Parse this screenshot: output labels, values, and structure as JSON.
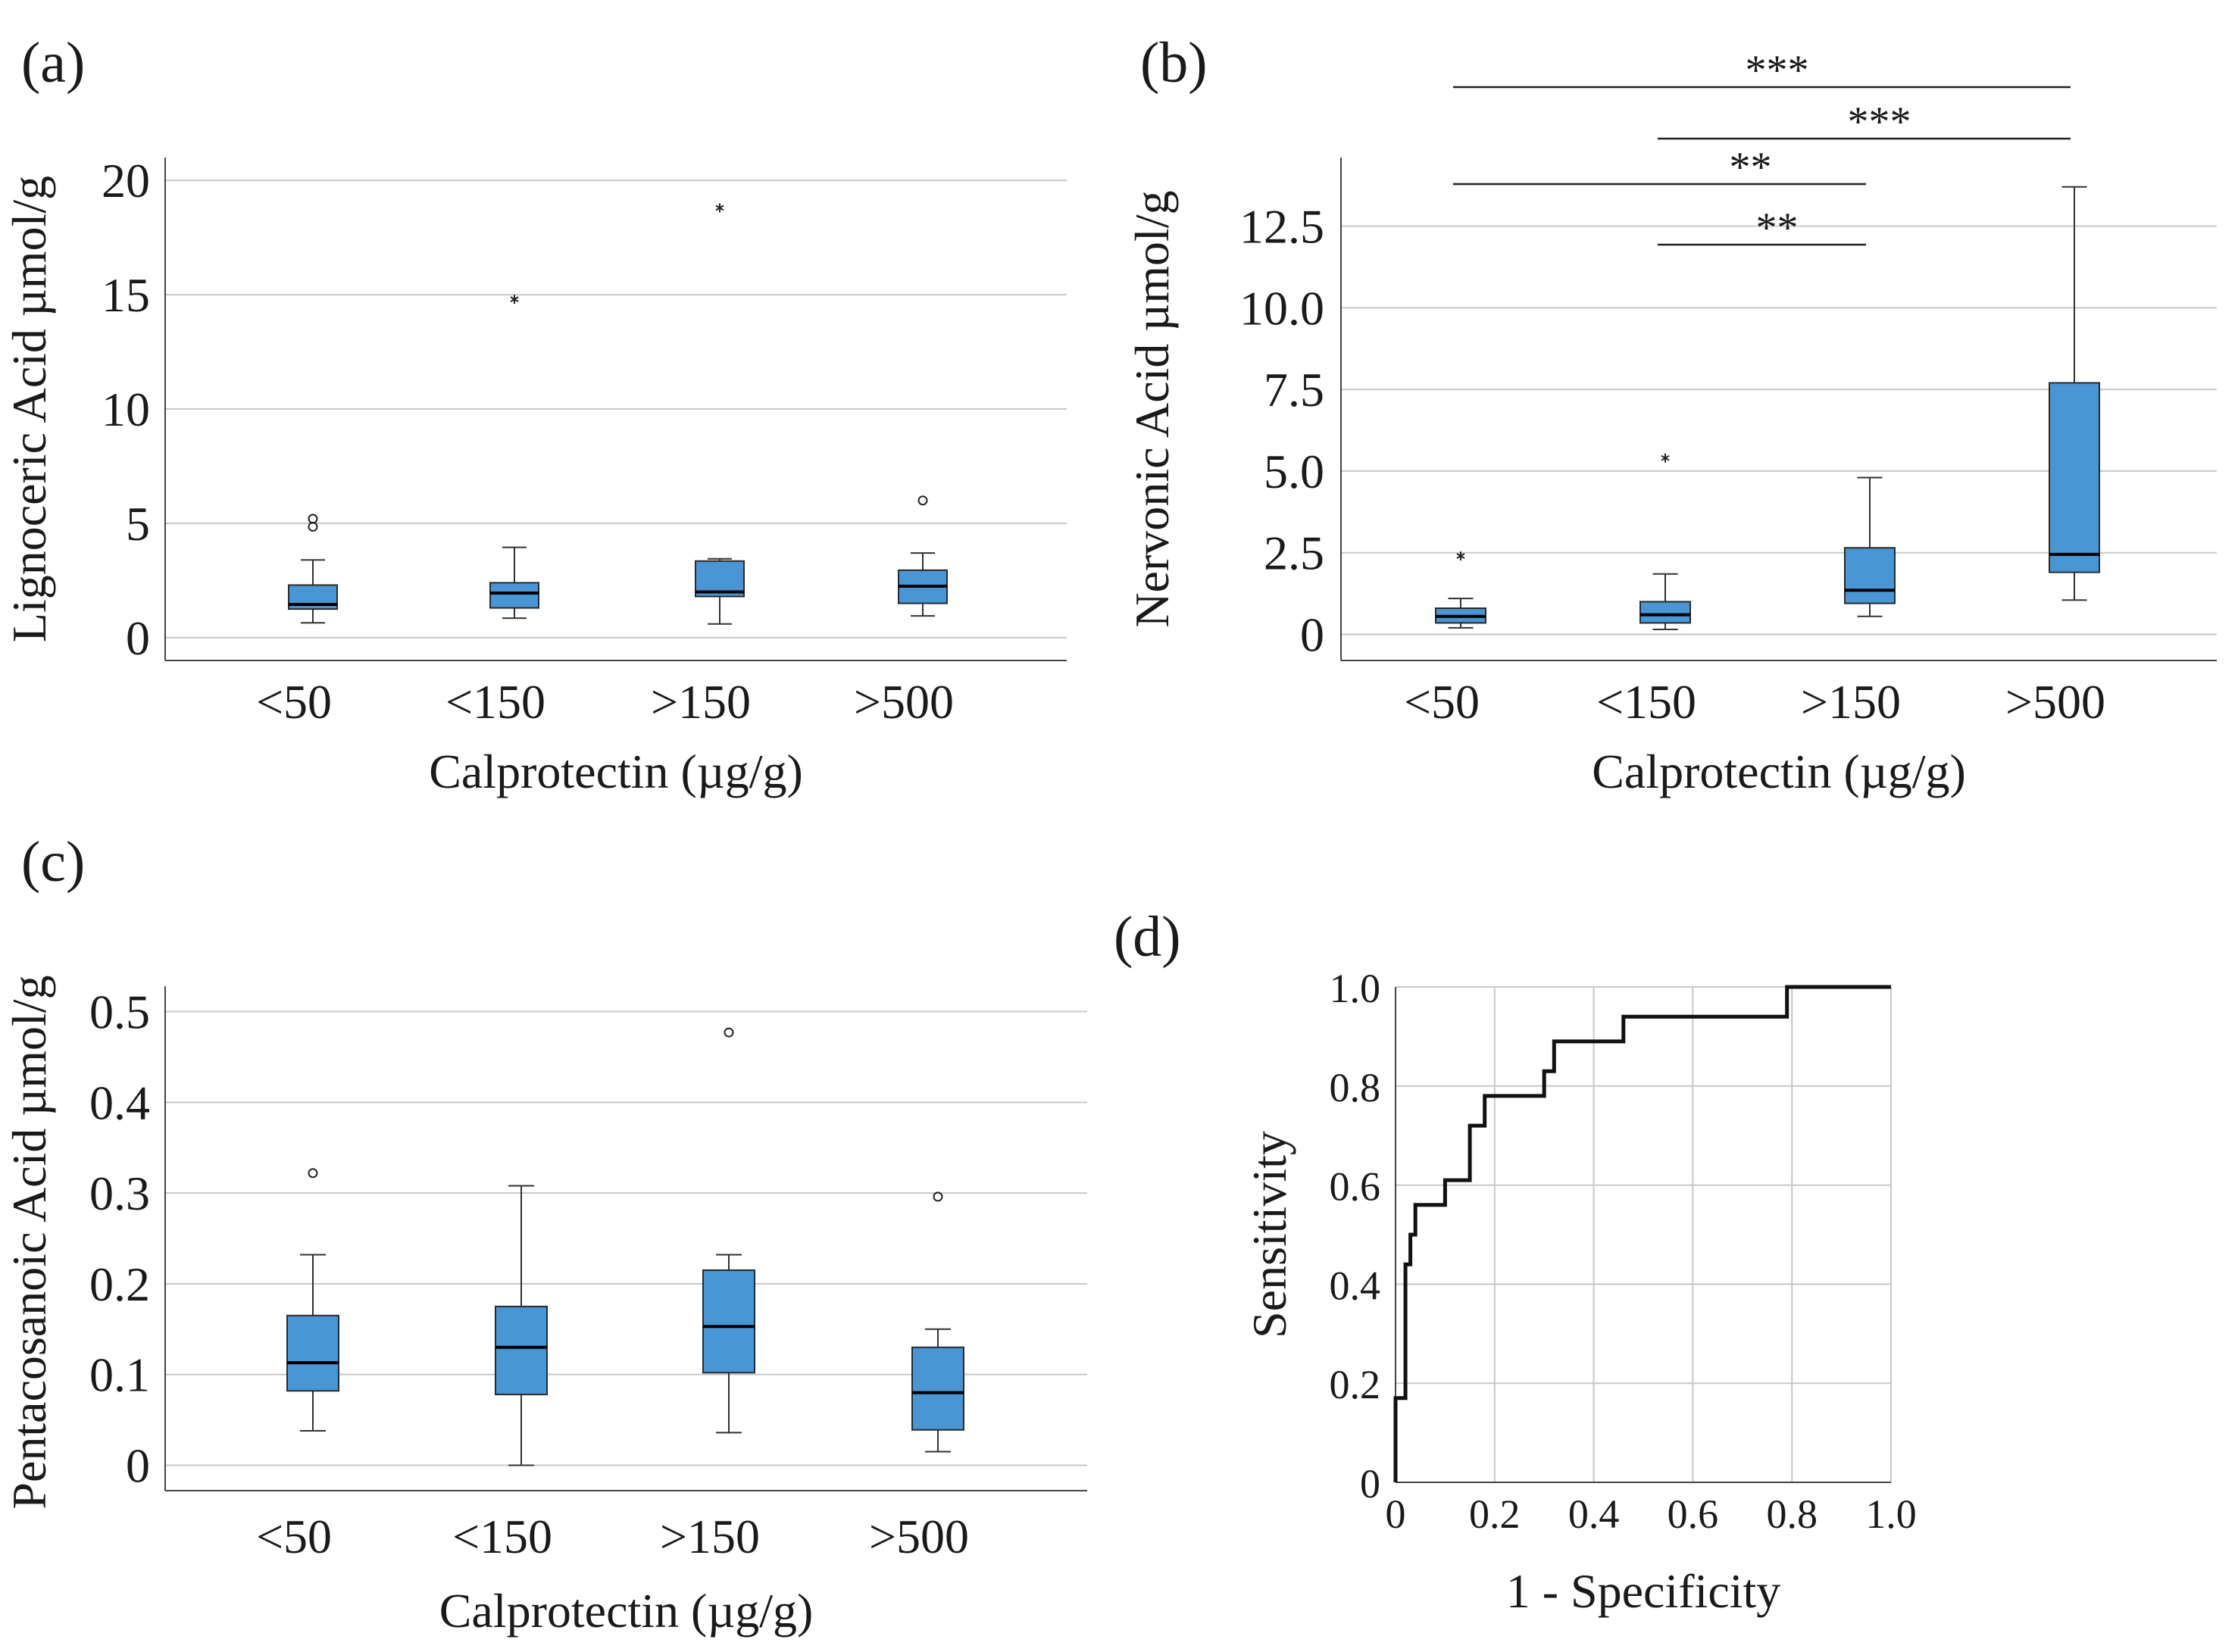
{
  "chart_data": [
    {
      "panel_label": "(a)",
      "type": "box",
      "ylabel": "Lignoceric Acid µmol/g",
      "xlabel": "Calprotectin (µg/g)",
      "ylim": [
        -1,
        21
      ],
      "yticks": [
        0,
        5,
        10,
        15,
        20
      ],
      "ytick_labels": [
        "0",
        "5",
        "10",
        "15",
        "20"
      ],
      "grid": true,
      "box_color": "#4a95d4",
      "boxes": [
        {
          "category": "<50",
          "q1": 1.25,
          "median": 1.45,
          "q3": 2.3,
          "whisker_low": 0.65,
          "whisker_high": 3.4,
          "outliers": [
            {
              "value": 5.2,
              "marker": "circle"
            },
            {
              "value": 4.85,
              "marker": "circle"
            }
          ]
        },
        {
          "category": "<150",
          "q1": 1.3,
          "median": 1.95,
          "q3": 2.4,
          "whisker_low": 0.85,
          "whisker_high": 3.95,
          "outliers": [
            {
              "value": 14.8,
              "marker": "star"
            }
          ]
        },
        {
          "category": ">150",
          "q1": 1.8,
          "median": 2.0,
          "q3": 3.35,
          "whisker_low": 0.6,
          "whisker_high": 3.45,
          "outliers": [
            {
              "value": 18.8,
              "marker": "star"
            }
          ]
        },
        {
          "category": ">500",
          "q1": 1.5,
          "median": 2.25,
          "q3": 2.95,
          "whisker_low": 0.95,
          "whisker_high": 3.7,
          "outliers": [
            {
              "value": 6.0,
              "marker": "circle"
            }
          ]
        }
      ],
      "significance": []
    },
    {
      "panel_label": "(b)",
      "type": "box",
      "ylabel": "Nervonic Acid µmol/g",
      "xlabel": "Calprotectin (µg/g)",
      "ylim": [
        -0.8,
        14.6
      ],
      "yticks": [
        0,
        2.5,
        5.0,
        7.5,
        10.0,
        12.5
      ],
      "ytick_labels": [
        "0",
        "2.5",
        "5.0",
        "7.5",
        "10.0",
        "12.5"
      ],
      "grid": true,
      "box_color": "#4a95d4",
      "boxes": [
        {
          "category": "<50",
          "q1": 0.35,
          "median": 0.55,
          "q3": 0.8,
          "whisker_low": 0.2,
          "whisker_high": 1.1,
          "outliers": [
            {
              "value": 2.4,
              "marker": "star"
            }
          ]
        },
        {
          "category": "<150",
          "q1": 0.35,
          "median": 0.6,
          "q3": 1.0,
          "whisker_low": 0.15,
          "whisker_high": 1.85,
          "outliers": [
            {
              "value": 5.4,
              "marker": "star"
            }
          ]
        },
        {
          "category": ">150",
          "q1": 0.95,
          "median": 1.35,
          "q3": 2.65,
          "whisker_low": 0.55,
          "whisker_high": 4.8,
          "outliers": []
        },
        {
          "category": ">500",
          "q1": 1.9,
          "median": 2.45,
          "q3": 7.7,
          "whisker_low": 1.05,
          "whisker_high": 13.7,
          "outliers": []
        }
      ],
      "significance": [
        {
          "from": 0,
          "to": 3,
          "label": "***"
        },
        {
          "from": 1,
          "to": 3,
          "label": "***"
        },
        {
          "from": 0,
          "to": 2,
          "label": "**"
        },
        {
          "from": 1,
          "to": 2,
          "label": "**"
        }
      ]
    },
    {
      "panel_label": "(c)",
      "type": "box",
      "ylabel": "Pentacosanoic Acid µmol/g",
      "xlabel": "Calprotectin (µg/g)",
      "ylim": [
        -0.028,
        0.528
      ],
      "yticks": [
        0,
        0.1,
        0.2,
        0.3,
        0.4,
        0.5
      ],
      "ytick_labels": [
        "0",
        "0.1",
        "0.2",
        "0.3",
        "0.4",
        "0.5"
      ],
      "grid": true,
      "box_color": "#4a95d4",
      "boxes": [
        {
          "category": "<50",
          "q1": 0.082,
          "median": 0.113,
          "q3": 0.165,
          "whisker_low": 0.038,
          "whisker_high": 0.232,
          "outliers": [
            {
              "value": 0.322,
              "marker": "circle"
            }
          ]
        },
        {
          "category": "<150",
          "q1": 0.078,
          "median": 0.13,
          "q3": 0.175,
          "whisker_low": 0.0,
          "whisker_high": 0.308,
          "outliers": []
        },
        {
          "category": ">150",
          "q1": 0.102,
          "median": 0.153,
          "q3": 0.215,
          "whisker_low": 0.036,
          "whisker_high": 0.232,
          "outliers": [
            {
              "value": 0.477,
              "marker": "circle"
            }
          ]
        },
        {
          "category": ">500",
          "q1": 0.039,
          "median": 0.08,
          "q3": 0.13,
          "whisker_low": 0.015,
          "whisker_high": 0.15,
          "outliers": [
            {
              "value": 0.296,
              "marker": "circle"
            }
          ]
        }
      ],
      "significance": []
    },
    {
      "panel_label": "(d)",
      "type": "line",
      "subtype": "roc-step",
      "xlabel": "1 - Specificity",
      "ylabel": "Sensitivity",
      "xlim": [
        0,
        1.0
      ],
      "ylim": [
        0,
        1.0
      ],
      "xticks": [
        0,
        0.2,
        0.4,
        0.6,
        0.8,
        1.0
      ],
      "xtick_labels": [
        "0",
        "0.2",
        "0.4",
        "0.6",
        "0.8",
        "1.0"
      ],
      "yticks": [
        0,
        0.2,
        0.4,
        0.6,
        0.8,
        1.0
      ],
      "ytick_labels": [
        "0",
        "0.2",
        "0.4",
        "0.6",
        "0.8",
        "1.0"
      ],
      "grid": true,
      "line_color": "#111111",
      "x": [
        0,
        0,
        0.02,
        0.02,
        0.03,
        0.03,
        0.04,
        0.04,
        0.06,
        0.06,
        0.1,
        0.1,
        0.15,
        0.15,
        0.18,
        0.18,
        0.3,
        0.3,
        0.32,
        0.32,
        0.46,
        0.46,
        0.79,
        0.79,
        1.0
      ],
      "y": [
        0,
        0.17,
        0.17,
        0.44,
        0.44,
        0.5,
        0.5,
        0.56,
        0.56,
        0.56,
        0.56,
        0.61,
        0.61,
        0.72,
        0.72,
        0.78,
        0.78,
        0.83,
        0.83,
        0.89,
        0.89,
        0.94,
        0.94,
        1.0,
        1.0
      ]
    }
  ]
}
